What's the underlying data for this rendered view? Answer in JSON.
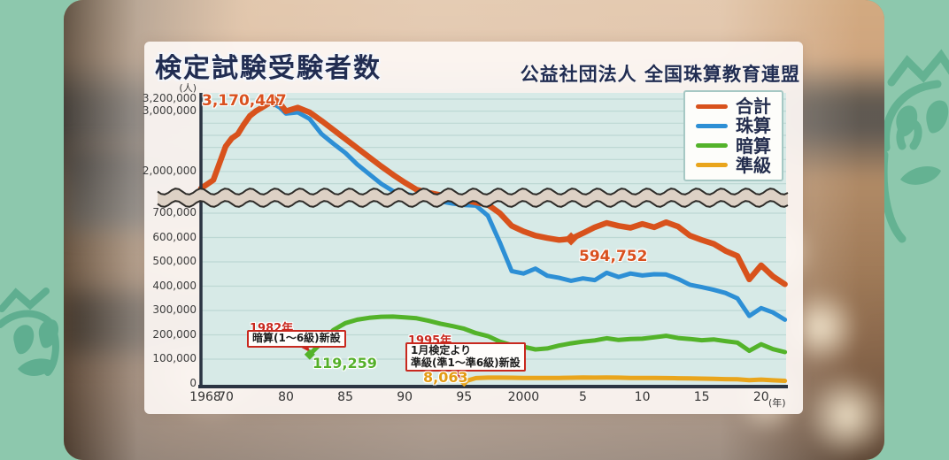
{
  "header": {
    "title": "検定試験受験者数",
    "org": "公益社団法人 全国珠算教育連盟"
  },
  "colors": {
    "total": "#d8521c",
    "shuzan": "#2d8fd5",
    "anzan": "#53b32a",
    "junkyu": "#e9a51c",
    "frame_teal": "#8dc8ad",
    "doodle_teal": "#64b292",
    "plot_bg": "#d7eae7",
    "grid": "#bdd8d4",
    "axis": "#2b3442",
    "band_fill": "#ddd1c5",
    "band_stroke": "#2e2c29"
  },
  "legend": [
    {
      "label": "合計",
      "color": "#d8521c"
    },
    {
      "label": "珠算",
      "color": "#2d8fd5"
    },
    {
      "label": "暗算",
      "color": "#53b32a"
    },
    {
      "label": "準級",
      "color": "#e9a51c"
    }
  ],
  "axes": {
    "y_unit": "(人)",
    "x_unit": "(年)",
    "y_top_ticks": [
      {
        "value": 3200000,
        "label": "3,200,000"
      },
      {
        "value": 3000000,
        "label": "3,000,000"
      },
      {
        "value": 2000000,
        "label": "2,000,000"
      }
    ],
    "y_bottom_ticks": [
      {
        "value": 700000,
        "label": "700,000"
      },
      {
        "value": 600000,
        "label": "600,000"
      },
      {
        "value": 500000,
        "label": "500,000"
      },
      {
        "value": 400000,
        "label": "400,000"
      },
      {
        "value": 300000,
        "label": "300,000"
      },
      {
        "value": 200000,
        "label": "200,000"
      },
      {
        "value": 100000,
        "label": "100,000"
      },
      {
        "value": 0,
        "label": "0"
      }
    ],
    "x_ticks": [
      {
        "year": 1968,
        "label": "1968"
      },
      {
        "year": 1970,
        "label": "70"
      },
      {
        "year": 1980,
        "label": "80"
      },
      {
        "year": 1985,
        "label": "85"
      },
      {
        "year": 1990,
        "label": "90"
      },
      {
        "year": 1995,
        "label": "95"
      },
      {
        "year": 2000,
        "label": "2000"
      },
      {
        "year": 2005,
        "label": "5"
      },
      {
        "year": 2010,
        "label": "10"
      },
      {
        "year": 2015,
        "label": "15"
      },
      {
        "year": 2020,
        "label": "20"
      }
    ]
  },
  "annotations": {
    "peak": {
      "label": "3,170,447"
    },
    "total_2004": {
      "label": "594,752"
    },
    "anzan_start": {
      "year": "1982年",
      "box": "暗算(1〜6級)新設",
      "value_label": "119,259"
    },
    "junkyu_start": {
      "year": "1995年",
      "line1": "1月検定より",
      "line2": "準級(準1〜準6級)新設",
      "value_label": "8,063"
    }
  },
  "chart_data": {
    "type": "line",
    "title": "検定試験受験者数",
    "y_unit": "人",
    "x_unit": "年",
    "x_range": [
      1968,
      2022
    ],
    "y_axis_break": {
      "lower_max": 730000,
      "upper_min": 1950000
    },
    "grid": true,
    "legend_position": "top-right",
    "callouts": [
      {
        "series": "合計",
        "year": 1978,
        "value": 3170447,
        "label": "3,170,447"
      },
      {
        "series": "合計",
        "year": 2004,
        "value": 594752,
        "label": "594,752"
      },
      {
        "series": "暗算",
        "year": 1982,
        "value": 119259,
        "label": "119,259",
        "note": "1982年 暗算(1〜6級)新設"
      },
      {
        "series": "準級",
        "year": 1995,
        "value": 8063,
        "label": "8,063",
        "note": "1995年 1月検定より準級(準1〜準6級)新設"
      }
    ],
    "series": [
      {
        "name": "珠算",
        "color": "#2d8fd5",
        "width": 5,
        "points": [
          [
            1978,
            3120000
          ],
          [
            1979,
            3060000
          ],
          [
            1980,
            2960000
          ],
          [
            1981,
            2980000
          ],
          [
            1982,
            2870000
          ],
          [
            1983,
            2620000
          ],
          [
            1984,
            2460000
          ],
          [
            1985,
            2310000
          ],
          [
            1986,
            2120000
          ],
          [
            1987,
            1960000
          ],
          [
            1988,
            1800000
          ],
          [
            1989,
            1650000
          ],
          [
            1990,
            1490000
          ],
          [
            1991,
            1330000
          ],
          [
            1992,
            1170000
          ],
          [
            1993,
            1020000
          ],
          [
            1994,
            890000
          ],
          [
            1995,
            800000
          ],
          [
            1996,
            760000
          ],
          [
            1997,
            690000
          ],
          [
            1998,
            580000
          ],
          [
            1999,
            462000
          ],
          [
            2000,
            452000
          ],
          [
            2001,
            472000
          ],
          [
            2002,
            443000
          ],
          [
            2003,
            434000
          ],
          [
            2004,
            422000
          ],
          [
            2005,
            432000
          ],
          [
            2006,
            425000
          ],
          [
            2007,
            455000
          ],
          [
            2008,
            438000
          ],
          [
            2009,
            452000
          ],
          [
            2010,
            444000
          ],
          [
            2011,
            449000
          ],
          [
            2012,
            448000
          ],
          [
            2013,
            430000
          ],
          [
            2014,
            406000
          ],
          [
            2015,
            396000
          ],
          [
            2016,
            385000
          ],
          [
            2017,
            372000
          ],
          [
            2018,
            350000
          ],
          [
            2019,
            278000
          ],
          [
            2020,
            310000
          ],
          [
            2021,
            292000
          ],
          [
            2022,
            262000
          ]
        ]
      },
      {
        "name": "暗算",
        "color": "#53b32a",
        "width": 5,
        "points": [
          [
            1982,
            119259
          ],
          [
            1983,
            168000
          ],
          [
            1984,
            220000
          ],
          [
            1985,
            248000
          ],
          [
            1986,
            262000
          ],
          [
            1987,
            270000
          ],
          [
            1988,
            274000
          ],
          [
            1989,
            275000
          ],
          [
            1990,
            272000
          ],
          [
            1991,
            268000
          ],
          [
            1992,
            258000
          ],
          [
            1993,
            246000
          ],
          [
            1994,
            236000
          ],
          [
            1995,
            225000
          ],
          [
            1996,
            207000
          ],
          [
            1997,
            195000
          ],
          [
            1998,
            172000
          ],
          [
            1999,
            158000
          ],
          [
            2000,
            151000
          ],
          [
            2001,
            140000
          ],
          [
            2002,
            144000
          ],
          [
            2003,
            156000
          ],
          [
            2004,
            165000
          ],
          [
            2005,
            172000
          ],
          [
            2006,
            177000
          ],
          [
            2007,
            186000
          ],
          [
            2008,
            179000
          ],
          [
            2009,
            183000
          ],
          [
            2010,
            184000
          ],
          [
            2011,
            190000
          ],
          [
            2012,
            196000
          ],
          [
            2013,
            187000
          ],
          [
            2014,
            183000
          ],
          [
            2015,
            178000
          ],
          [
            2016,
            181000
          ],
          [
            2017,
            174000
          ],
          [
            2018,
            168000
          ],
          [
            2019,
            134000
          ],
          [
            2020,
            161000
          ],
          [
            2021,
            141000
          ],
          [
            2022,
            129000
          ]
        ]
      },
      {
        "name": "準級",
        "color": "#e9a51c",
        "width": 5,
        "points": [
          [
            1995,
            8063
          ],
          [
            1996,
            22000
          ],
          [
            1997,
            24000
          ],
          [
            1998,
            24000
          ],
          [
            1999,
            23500
          ],
          [
            2000,
            23000
          ],
          [
            2001,
            22500
          ],
          [
            2002,
            22500
          ],
          [
            2003,
            23000
          ],
          [
            2004,
            23500
          ],
          [
            2005,
            24500
          ],
          [
            2006,
            24000
          ],
          [
            2007,
            24500
          ],
          [
            2008,
            24000
          ],
          [
            2009,
            23000
          ],
          [
            2010,
            23000
          ],
          [
            2011,
            22500
          ],
          [
            2012,
            22000
          ],
          [
            2013,
            21500
          ],
          [
            2014,
            21000
          ],
          [
            2015,
            20000
          ],
          [
            2016,
            19000
          ],
          [
            2017,
            18000
          ],
          [
            2018,
            17000
          ],
          [
            2019,
            13500
          ],
          [
            2020,
            16000
          ],
          [
            2021,
            13000
          ],
          [
            2022,
            11000
          ]
        ]
      },
      {
        "name": "合計",
        "color": "#d8521c",
        "width": 6.5,
        "points": [
          [
            1968,
            1720000
          ],
          [
            1969,
            1860000
          ],
          [
            1970,
            2420000
          ],
          [
            1971,
            2550000
          ],
          [
            1972,
            2620000
          ],
          [
            1973,
            2780000
          ],
          [
            1974,
            2920000
          ],
          [
            1975,
            3000000
          ],
          [
            1976,
            3060000
          ],
          [
            1977,
            3120000
          ],
          [
            1978,
            3170447
          ],
          [
            1979,
            3130000
          ],
          [
            1980,
            3000000
          ],
          [
            1981,
            3060000
          ],
          [
            1982,
            2980000
          ],
          [
            1983,
            2840000
          ],
          [
            1984,
            2690000
          ],
          [
            1985,
            2540000
          ],
          [
            1986,
            2390000
          ],
          [
            1987,
            2240000
          ],
          [
            1988,
            2090000
          ],
          [
            1989,
            1950000
          ],
          [
            1990,
            1820000
          ],
          [
            1991,
            1700000
          ],
          [
            1992,
            1550000
          ],
          [
            1993,
            1400000
          ],
          [
            1994,
            1250000
          ],
          [
            1995,
            1100000
          ],
          [
            1996,
            950000
          ],
          [
            1997,
            820000
          ],
          [
            1998,
            700000
          ],
          [
            1999,
            648000
          ],
          [
            2000,
            625000
          ],
          [
            2001,
            608000
          ],
          [
            2002,
            598000
          ],
          [
            2003,
            590000
          ],
          [
            2004,
            594752
          ],
          [
            2005,
            618000
          ],
          [
            2006,
            642000
          ],
          [
            2007,
            660000
          ],
          [
            2008,
            648000
          ],
          [
            2009,
            640000
          ],
          [
            2010,
            656000
          ],
          [
            2011,
            642000
          ],
          [
            2012,
            663000
          ],
          [
            2013,
            645000
          ],
          [
            2014,
            608000
          ],
          [
            2015,
            590000
          ],
          [
            2016,
            574000
          ],
          [
            2017,
            545000
          ],
          [
            2018,
            524000
          ],
          [
            2019,
            428000
          ],
          [
            2020,
            486000
          ],
          [
            2021,
            440000
          ],
          [
            2022,
            408000
          ]
        ]
      }
    ]
  }
}
